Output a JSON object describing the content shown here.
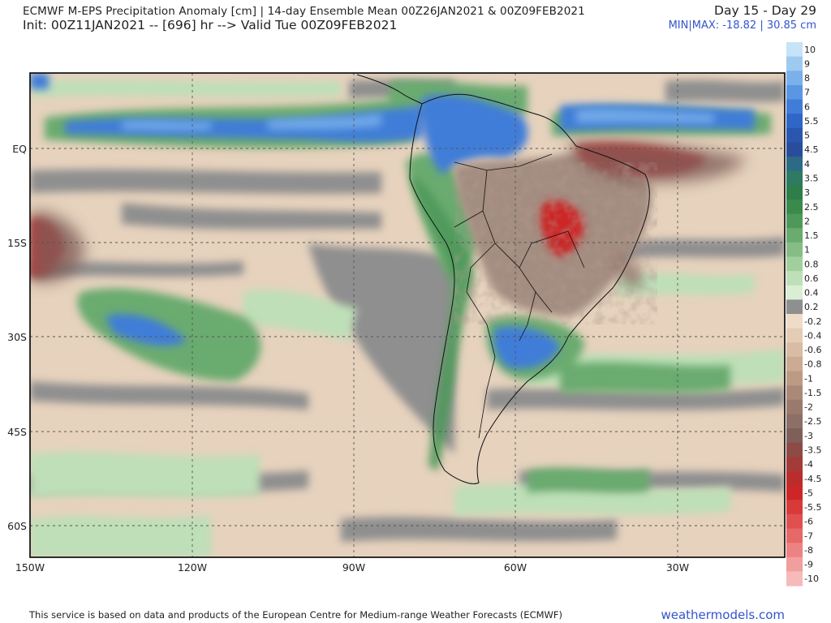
{
  "header": {
    "title": "ECMWF M-EPS Precipitation Anomaly [cm] | 14-day Ensemble Mean 00Z26JAN2021 & 00Z09FEB2021",
    "init": "Init: 00Z11JAN2021 -- [696] hr --> Valid Tue 00Z09FEB2021",
    "period": "Day 15 - Day 29",
    "minmax": "MIN|MAX: -18.82 | 30.85 cm"
  },
  "axes": {
    "lat_labels": [
      "EQ",
      "15S",
      "30S",
      "45S",
      "60S"
    ],
    "lon_labels": [
      "150W",
      "120W",
      "90W",
      "60W",
      "30W"
    ]
  },
  "colorbar": {
    "labels": [
      "10",
      "9",
      "8",
      "7",
      "6",
      "5.5",
      "5",
      "4.5",
      "4",
      "3.5",
      "3",
      "2.5",
      "2",
      "1.5",
      "1",
      "0.8",
      "0.6",
      "0.4",
      "0.2",
      "-0.2",
      "-0.4",
      "-0.6",
      "-0.8",
      "-1",
      "-1.5",
      "-2",
      "-2.5",
      "-3",
      "-3.5",
      "-4",
      "-4.5",
      "-5",
      "-5.5",
      "-6",
      "-7",
      "-8",
      "-9",
      "-10"
    ],
    "colors": [
      "#c7e3f7",
      "#9fcaf0",
      "#7ab1ea",
      "#5b96e2",
      "#3f7dd8",
      "#2f66c8",
      "#2a56b0",
      "#2a4c9c",
      "#2d6a86",
      "#2e7a62",
      "#2f7d4a",
      "#3a8a4c",
      "#4e995a",
      "#6aab6f",
      "#86bd86",
      "#a2cf9e",
      "#bedfb8",
      "#d9eed3",
      "#8f8f8f",
      "#efdcc8",
      "#e4ccb5",
      "#d8bca3",
      "#cbab92",
      "#bc9a84",
      "#ab8978",
      "#9b7a6e",
      "#8c6f66",
      "#805f5a",
      "#8e4a46",
      "#a53b38",
      "#bb2c2c",
      "#cc2626",
      "#d83a3a",
      "#e05050",
      "#e66868",
      "#ec8282",
      "#f19e9e",
      "#f6baba"
    ]
  },
  "footer": {
    "disclaimer": "This service is based on data and products of the European Centre for Medium-range Weather Forecasts (ECMWF)",
    "brand": "weathermodels.com"
  }
}
